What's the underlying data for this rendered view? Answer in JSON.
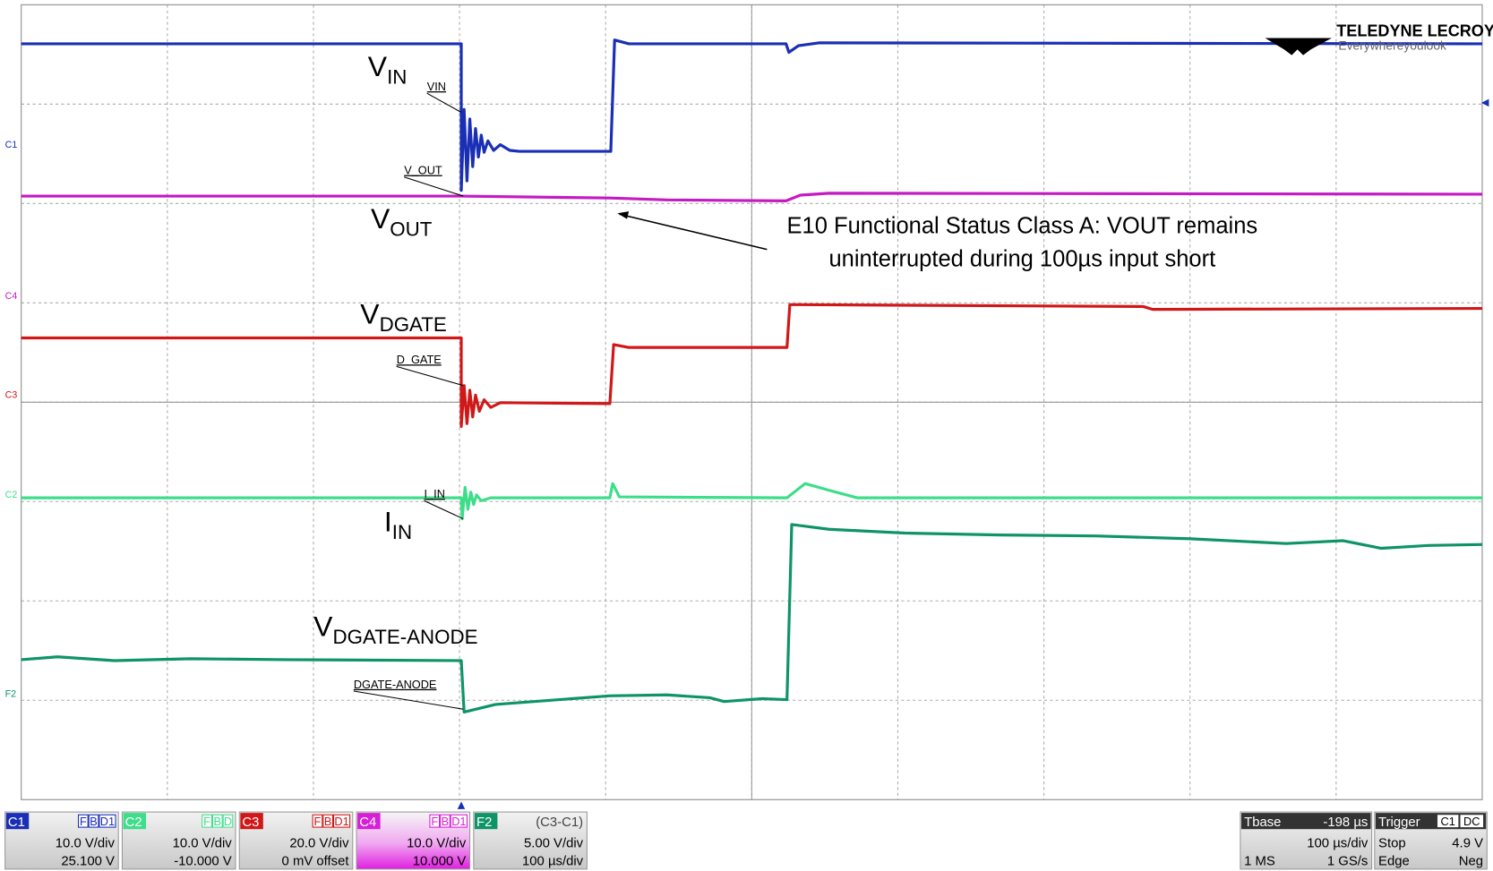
{
  "logo": {
    "brand": "TELEDYNE LECROY",
    "tagline": "Everywhereyoulook"
  },
  "trace_labels": [
    {
      "main": "V",
      "sub": "IN"
    },
    {
      "main": "V",
      "sub": "OUT"
    },
    {
      "main": "V",
      "sub": "DGATE"
    },
    {
      "main": "I",
      "sub": "IN"
    },
    {
      "main": "V",
      "sub": "DGATE-ANODE"
    }
  ],
  "probe_labels": [
    "VIN",
    "V_OUT",
    "D_GATE",
    "I_IN",
    "DGATE-ANODE"
  ],
  "channel_markers": [
    "C1",
    "C4",
    "C3",
    "C2",
    "F2"
  ],
  "annotation": [
    "E10 Functional Status Class A: VOUT remains",
    "uninterrupted during 100µs input short"
  ],
  "channels": [
    {
      "name": "C1",
      "flags": [
        "F",
        "B",
        "D1"
      ],
      "scale": "10.0 V/div",
      "offset": "25.100 V"
    },
    {
      "name": "C2",
      "flags": [
        "F",
        "B",
        "D"
      ],
      "scale": "10.0 V/div",
      "offset": "-10.000 V"
    },
    {
      "name": "C3",
      "flags": [
        "F",
        "B",
        "D1"
      ],
      "scale": "20.0 V/div",
      "offset": "0 mV offset"
    },
    {
      "name": "C4",
      "flags": [
        "F",
        "B",
        "D1"
      ],
      "scale": "10.0 V/div",
      "offset": "10.000 V"
    },
    {
      "name": "F2",
      "flags": [
        "(C3-C1)"
      ],
      "scale": "5.00 V/div",
      "offset": "100 µs/div"
    }
  ],
  "timebase": {
    "title": "Tbase",
    "delay": "-198 µs",
    "scale": "100 µs/div",
    "points": "1 MS",
    "rate": "1 GS/s"
  },
  "trigger": {
    "title": "Trigger",
    "source": "C1",
    "coupling": "DC",
    "mode": "Stop",
    "level": "4.9 V",
    "type": "Edge",
    "slope": "Neg"
  }
}
